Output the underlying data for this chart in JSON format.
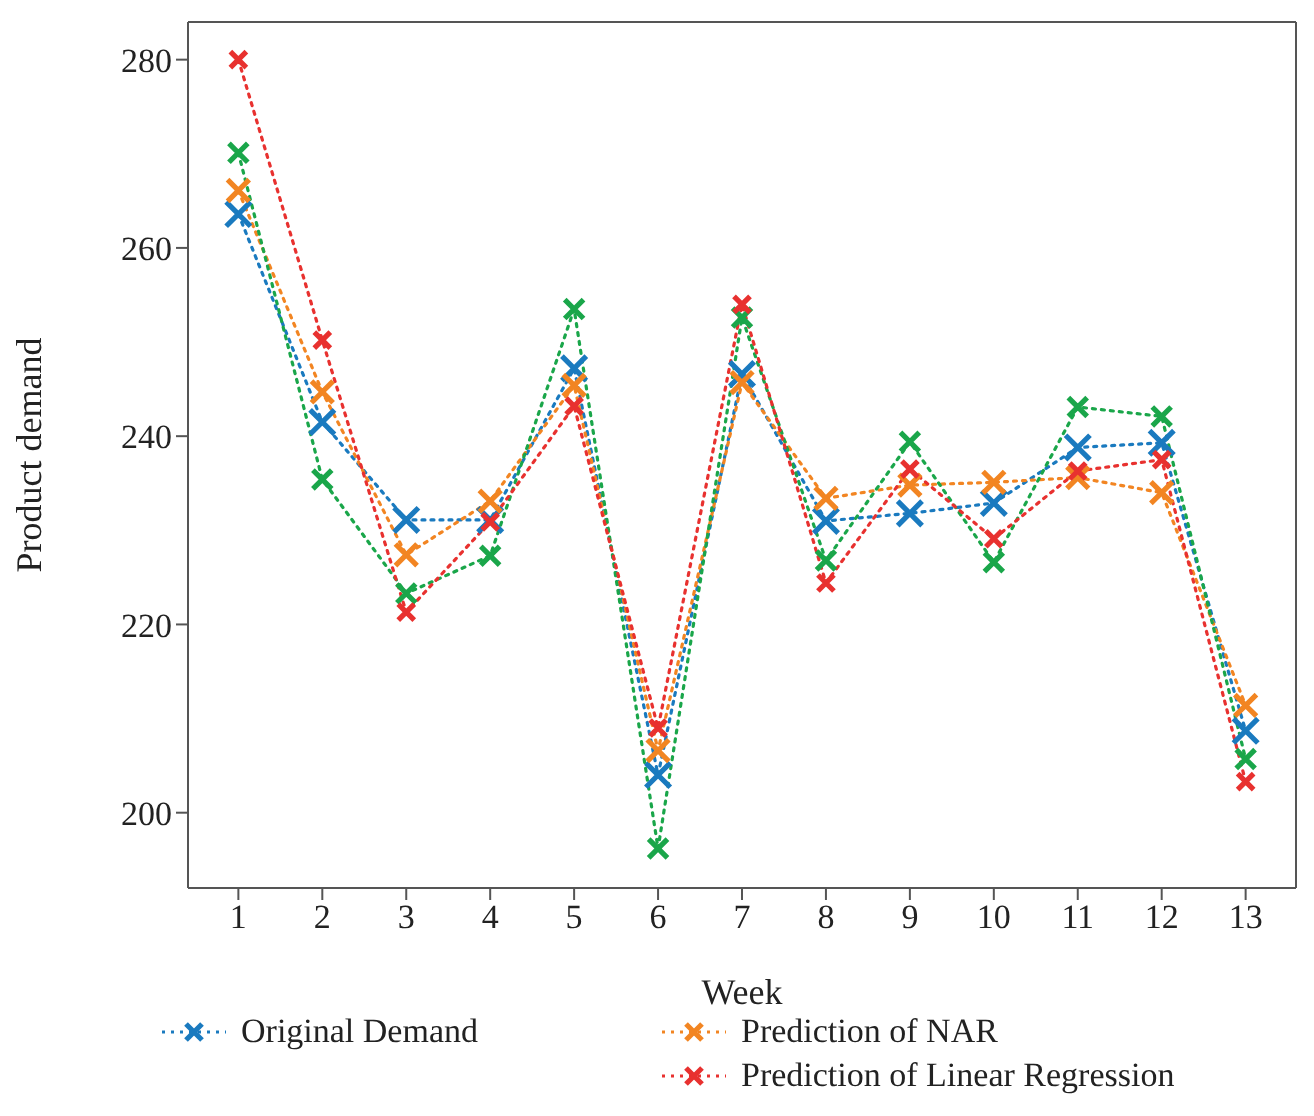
{
  "chart_data": {
    "type": "line",
    "xlabel": "Week",
    "ylabel": "Product demand",
    "x": [
      1,
      2,
      3,
      4,
      5,
      6,
      7,
      8,
      9,
      10,
      11,
      12,
      13
    ],
    "xlim": [
      0.4,
      13.6
    ],
    "xticks": [
      1,
      2,
      3,
      4,
      5,
      6,
      7,
      8,
      9,
      10,
      11,
      12,
      13
    ],
    "ylim": [
      192,
      284
    ],
    "yticks": [
      200,
      220,
      240,
      260,
      280
    ],
    "marker": "cross",
    "line_style": "dotted",
    "grid": false,
    "legend": "bottom",
    "series": [
      {
        "name": "Original Demand",
        "color": "#1a7abf",
        "values": [
          263.6,
          241.5,
          231.1,
          231.1,
          247.2,
          204.0,
          246.6,
          231.0,
          231.8,
          232.9,
          238.8,
          239.3,
          208.7
        ]
      },
      {
        "name": "Prediction of NAR",
        "color": "#f28522",
        "values": [
          266.1,
          244.7,
          227.4,
          233.1,
          245.4,
          206.6,
          245.7,
          233.4,
          234.8,
          235.1,
          235.6,
          234.0,
          211.4
        ]
      },
      {
        "color": "#1aa64a",
        "values": [
          270.1,
          235.4,
          223.3,
          227.3,
          253.5,
          196.2,
          252.6,
          226.8,
          239.4,
          226.6,
          243.1,
          242.1,
          205.7
        ]
      },
      {
        "name": "Prediction of Linear Regression",
        "color": "#e8312f",
        "values": [
          280.0,
          250.2,
          221.3,
          230.9,
          243.2,
          209.0,
          254.0,
          224.4,
          236.5,
          229.1,
          236.3,
          237.5,
          203.3
        ]
      }
    ]
  }
}
